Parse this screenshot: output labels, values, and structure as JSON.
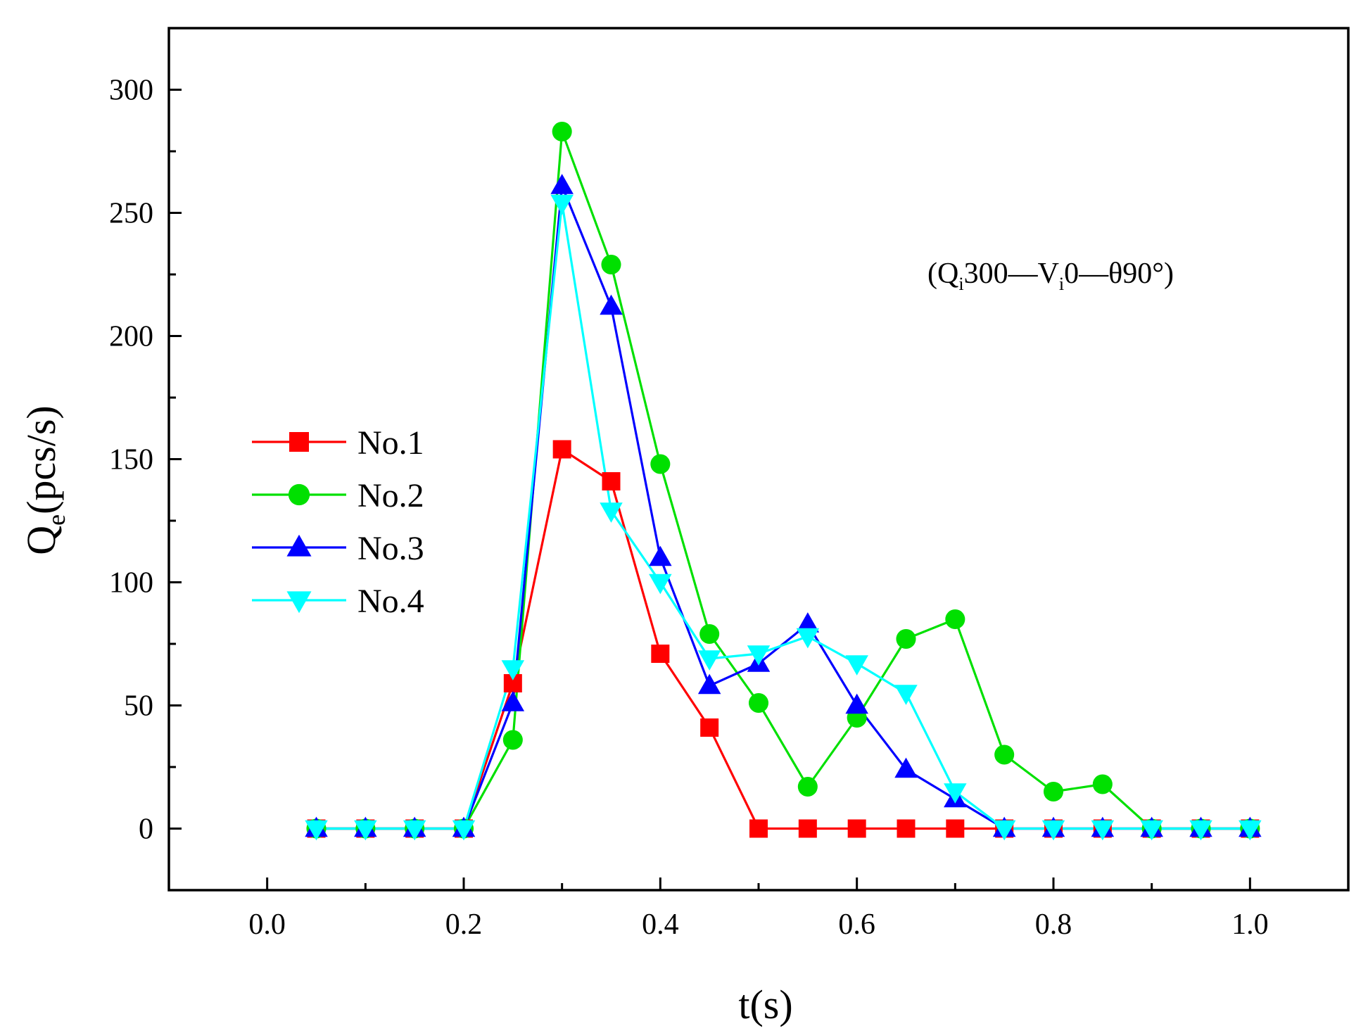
{
  "chart_data": {
    "type": "line",
    "title": "",
    "xlabel": "t(s)",
    "ylabel": {
      "main": "Q",
      "sub": "e",
      "unit": "(pcs/s)"
    },
    "xlim": [
      -0.1,
      1.1
    ],
    "ylim": [
      -25,
      325
    ],
    "x_ticks": [
      0.0,
      0.2,
      0.4,
      0.6,
      0.8,
      1.0
    ],
    "x_tick_labels": [
      "0.0",
      "0.2",
      "0.4",
      "0.6",
      "0.8",
      "1.0"
    ],
    "y_ticks": [
      0,
      50,
      100,
      150,
      200,
      250,
      300
    ],
    "y_tick_labels": [
      "0",
      "50",
      "100",
      "150",
      "200",
      "250",
      "300"
    ],
    "grid": false,
    "legend_position": "center-left",
    "annotation": {
      "parts": [
        "(Q",
        "i",
        "300—V",
        "i",
        "0—θ90°)"
      ]
    },
    "x": [
      0.05,
      0.1,
      0.15,
      0.2,
      0.25,
      0.3,
      0.35,
      0.4,
      0.45,
      0.5,
      0.55,
      0.6,
      0.65,
      0.7,
      0.75,
      0.8,
      0.85,
      0.9,
      0.95,
      1.0
    ],
    "series": [
      {
        "name": "No.1",
        "color": "#ff0000",
        "marker": "square",
        "values": [
          0,
          0,
          0,
          0,
          59,
          154,
          141,
          71,
          41,
          0,
          0,
          0,
          0,
          0,
          0,
          0,
          0,
          0,
          0,
          0
        ]
      },
      {
        "name": "No.2",
        "color": "#00e000",
        "marker": "circle",
        "values": [
          0,
          0,
          0,
          0,
          36,
          283,
          229,
          148,
          79,
          51,
          17,
          45,
          77,
          85,
          30,
          15,
          18,
          0,
          0,
          0
        ]
      },
      {
        "name": "No.3",
        "color": "#0000ff",
        "marker": "triangle-up",
        "values": [
          0,
          0,
          0,
          0,
          51,
          261,
          212,
          110,
          58,
          67,
          83,
          50,
          24,
          12,
          0,
          0,
          0,
          0,
          0,
          0
        ]
      },
      {
        "name": "No.4",
        "color": "#00ffff",
        "marker": "triangle-down",
        "values": [
          0,
          0,
          0,
          0,
          65,
          254,
          129,
          100,
          69,
          71,
          78,
          67,
          55,
          15,
          0,
          0,
          0,
          0,
          0,
          0
        ]
      }
    ]
  }
}
